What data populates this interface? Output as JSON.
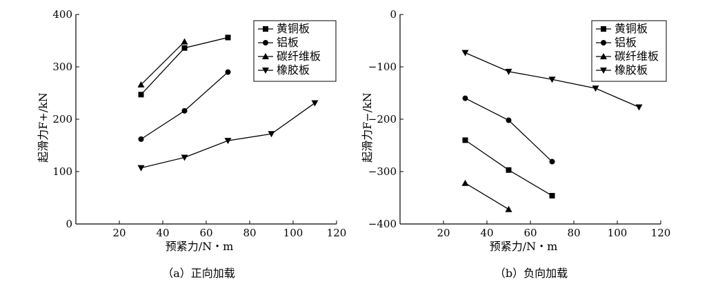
{
  "chart_data": [
    {
      "type": "line",
      "caption": "（a）正向加载",
      "xlabel": "预紧力/N・m",
      "ylabel": "起滑力F+/kN",
      "xlim": [
        0,
        120
      ],
      "ylim": [
        0,
        400
      ],
      "xticks": [
        20,
        40,
        60,
        80,
        100,
        120
      ],
      "yticks": [
        0,
        100,
        200,
        300,
        400
      ],
      "legend_position": "top-right",
      "grid": false,
      "series": [
        {
          "name": "黄铜板",
          "marker": "square",
          "x": [
            30,
            50,
            70
          ],
          "y": [
            247,
            336,
            356
          ]
        },
        {
          "name": "铝板",
          "marker": "circle",
          "x": [
            30,
            50,
            70
          ],
          "y": [
            162,
            216,
            290
          ]
        },
        {
          "name": "碳纤维板",
          "marker": "triangle-up",
          "x": [
            30,
            50
          ],
          "y": [
            266,
            348
          ]
        },
        {
          "name": "橡胶板",
          "marker": "triangle-down",
          "x": [
            30,
            50,
            70,
            90,
            110
          ],
          "y": [
            107,
            127,
            159,
            172,
            231
          ]
        }
      ]
    },
    {
      "type": "line",
      "caption": "（b）负向加载",
      "xlabel": "预紧力/N・m",
      "ylabel": "起滑力F−/kN",
      "xlim": [
        0,
        120
      ],
      "ylim": [
        -400,
        0
      ],
      "xticks": [
        20,
        40,
        60,
        80,
        100,
        120
      ],
      "yticks": [
        0,
        -100,
        -200,
        -300,
        -400
      ],
      "legend_position": "top-right",
      "grid": false,
      "series": [
        {
          "name": "黄铜板",
          "marker": "square",
          "x": [
            30,
            50,
            70
          ],
          "y": [
            -240,
            -297,
            -346
          ]
        },
        {
          "name": "铝板",
          "marker": "circle",
          "x": [
            30,
            50,
            70
          ],
          "y": [
            -160,
            -202,
            -281
          ]
        },
        {
          "name": "碳纤维板",
          "marker": "triangle-up",
          "x": [
            30,
            50
          ],
          "y": [
            -322,
            -372
          ]
        },
        {
          "name": "橡胶板",
          "marker": "triangle-down",
          "x": [
            30,
            50,
            70,
            90,
            110
          ],
          "y": [
            -73,
            -109,
            -124,
            -141,
            -177
          ]
        }
      ]
    }
  ]
}
